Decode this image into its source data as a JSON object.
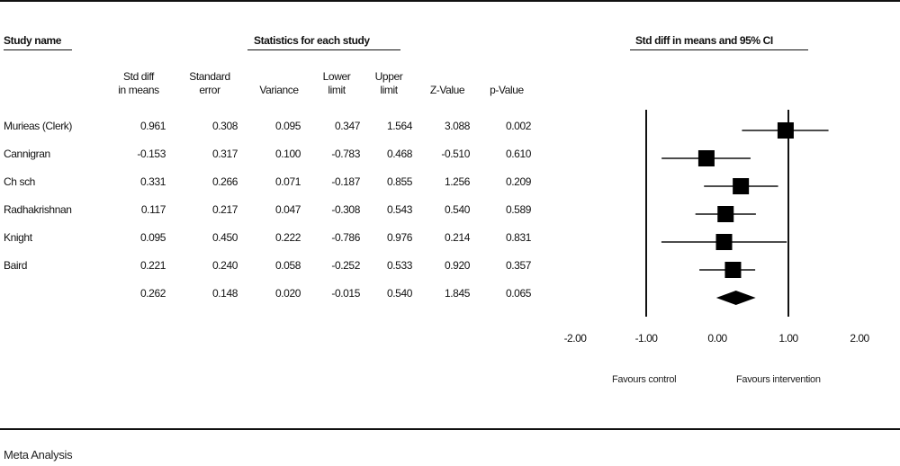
{
  "headers": {
    "study_name": "Study name",
    "statistics": "Statistics for each study",
    "plot": "Std diff in means and 95% CI"
  },
  "columns": {
    "std_diff": [
      "Std diff",
      "in means"
    ],
    "std_error": [
      "Standard",
      "error"
    ],
    "variance": [
      "",
      "Variance"
    ],
    "lower": [
      "Lower",
      "limit"
    ],
    "upper": [
      "Upper",
      "limit"
    ],
    "z": [
      "",
      "Z-Value"
    ],
    "p": [
      "",
      "p-Value"
    ]
  },
  "rows": [
    {
      "study": "Murieas (Clerk)",
      "std_diff": "0.961",
      "std_error": "0.308",
      "variance": "0.095",
      "lower": "0.347",
      "upper": "1.564",
      "z": "3.088",
      "p": "0.002"
    },
    {
      "study": "Cannigran",
      "std_diff": "-0.153",
      "std_error": "0.317",
      "variance": "0.100",
      "lower": "-0.783",
      "upper": "0.468",
      "z": "-0.510",
      "p": "0.610"
    },
    {
      "study": "Ch sch",
      "std_diff": "0.331",
      "std_error": "0.266",
      "variance": "0.071",
      "lower": "-0.187",
      "upper": "0.855",
      "z": "1.256",
      "p": "0.209"
    },
    {
      "study": "Radhakrishnan",
      "std_diff": "0.117",
      "std_error": "0.217",
      "variance": "0.047",
      "lower": "-0.308",
      "upper": "0.543",
      "z": "0.540",
      "p": "0.589"
    },
    {
      "study": "Knight",
      "std_diff": "0.095",
      "std_error": "0.450",
      "variance": "0.222",
      "lower": "-0.786",
      "upper": "0.976",
      "z": "0.214",
      "p": "0.831"
    },
    {
      "study": "Baird",
      "std_diff": "0.221",
      "std_error": "0.240",
      "variance": "0.058",
      "lower": "-0.252",
      "upper": "0.533",
      "z": "0.920",
      "p": "0.357"
    },
    {
      "study": "",
      "std_diff": "0.262",
      "std_error": "0.148",
      "variance": "0.020",
      "lower": "-0.015",
      "upper": "0.540",
      "z": "1.845",
      "p": "0.065"
    }
  ],
  "chart_data": {
    "type": "forest",
    "x_ticks": [
      "-2.00",
      "-1.00",
      "0.00",
      "1.00",
      "2.00"
    ],
    "xlim": [
      -2,
      2
    ],
    "studies": [
      {
        "name": "Murieas (Clerk)",
        "estimate": 0.961,
        "lower": 0.347,
        "upper": 1.564,
        "weight": 1.0
      },
      {
        "name": "Cannigran",
        "estimate": -0.153,
        "lower": -0.783,
        "upper": 0.468,
        "weight": 1.0
      },
      {
        "name": "Ch sch",
        "estimate": 0.331,
        "lower": -0.187,
        "upper": 0.855,
        "weight": 1.0
      },
      {
        "name": "Radhakrishnan",
        "estimate": 0.117,
        "lower": -0.308,
        "upper": 0.543,
        "weight": 1.0
      },
      {
        "name": "Knight",
        "estimate": 0.095,
        "lower": -0.786,
        "upper": 0.976,
        "weight": 1.0
      },
      {
        "name": "Baird",
        "estimate": 0.221,
        "lower": -0.252,
        "upper": 0.533,
        "weight": 1.0
      }
    ],
    "summary": {
      "estimate": 0.262,
      "lower": -0.015,
      "upper": 0.54
    },
    "favours_left": "Favours control",
    "favours_right": "Favours intervention"
  },
  "footer": {
    "title": "Meta Analysis"
  }
}
